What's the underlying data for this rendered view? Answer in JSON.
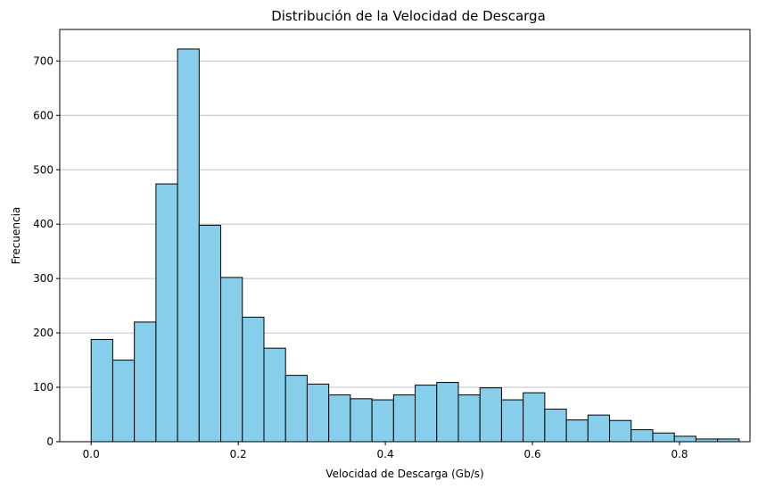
{
  "chart_data": {
    "type": "bar",
    "title": "Distribución de la Velocidad de Descarga",
    "xlabel": "Velocidad de Descarga (Gb/s)",
    "ylabel": "Frecuencia",
    "bin_start": 0.0,
    "bin_width": 0.02937,
    "values": [
      188,
      150,
      220,
      474,
      722,
      398,
      302,
      229,
      172,
      122,
      106,
      86,
      79,
      77,
      86,
      104,
      109,
      86,
      99,
      77,
      90,
      60,
      40,
      49,
      39,
      22,
      16,
      10,
      5,
      5
    ],
    "xlim": [
      -0.0427,
      0.8958
    ],
    "ylim": [
      0,
      758
    ],
    "xticks": [
      0.0,
      0.2,
      0.4,
      0.6,
      0.8
    ],
    "xtick_labels": [
      "0.0",
      "0.2",
      "0.4",
      "0.6",
      "0.8"
    ],
    "yticks": [
      0,
      100,
      200,
      300,
      400,
      500,
      600,
      700
    ],
    "ytick_labels": [
      "0",
      "100",
      "200",
      "300",
      "400",
      "500",
      "600",
      "700"
    ],
    "grid": "y",
    "bar_color": "#87CEEB",
    "edge_color": "#000000",
    "grid_color": "#c0c0c0"
  }
}
